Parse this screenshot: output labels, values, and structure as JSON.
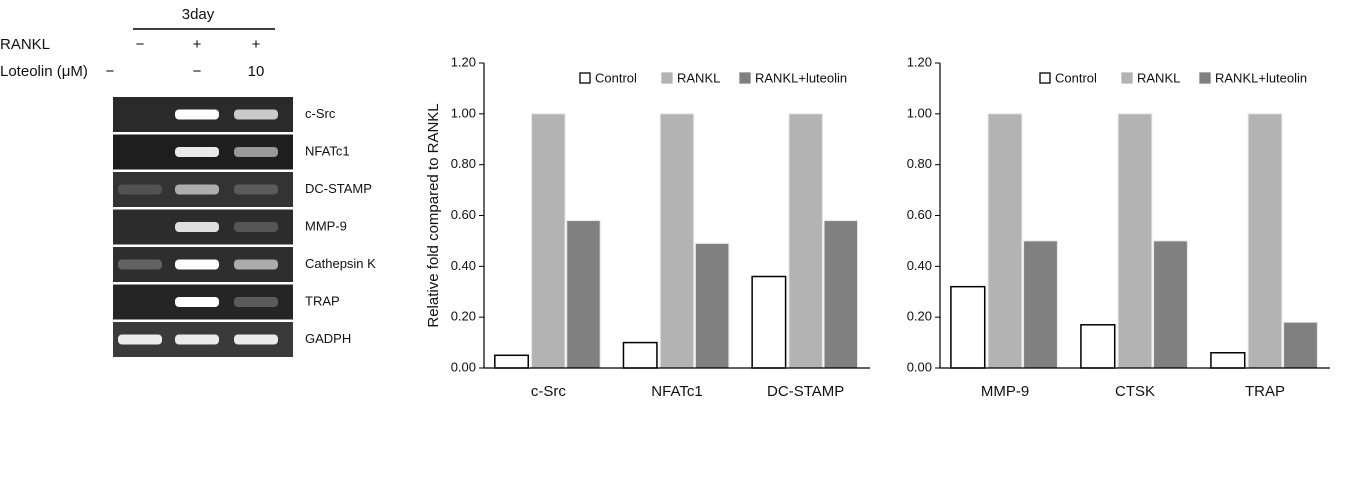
{
  "gel": {
    "header": "3day",
    "rows": [
      {
        "label": "RANKL",
        "lanes": [
          "−",
          "+",
          "+"
        ]
      },
      {
        "label": "Loteolin (μM)",
        "lanes": [
          "−",
          "−",
          "10"
        ]
      }
    ],
    "bands": [
      "c-Src",
      "NFATc1",
      "DC-STAMP",
      "MMP-9",
      "Cathepsin K",
      "TRAP",
      "GADPH"
    ]
  },
  "chart_data": [
    {
      "type": "bar",
      "y_label": "Relative fold compared to RANKL",
      "categories": [
        "c-Src",
        "NFATc1",
        "DC-STAMP"
      ],
      "series": [
        {
          "name": "Control",
          "color": "#ffffff",
          "values": [
            0.05,
            0.1,
            0.36
          ]
        },
        {
          "name": "RANKL",
          "color": "#b3b3b3",
          "values": [
            1.0,
            1.0,
            1.0
          ]
        },
        {
          "name": "RANKL+luteolin",
          "color": "#808080",
          "values": [
            0.58,
            0.49,
            0.58
          ]
        }
      ],
      "ylim": [
        0,
        1.2
      ],
      "yticks": [
        {
          "value": 0,
          "label": "0.00"
        },
        {
          "value": 0.2,
          "label": "0.20"
        },
        {
          "value": 0.4,
          "label": "0.40"
        },
        {
          "value": 0.6,
          "label": "0.60"
        },
        {
          "value": 0.8,
          "label": "0.80"
        },
        {
          "value": 1,
          "label": "1.00"
        },
        {
          "value": 1.2,
          "label": "1.20"
        }
      ],
      "legend": "top-right"
    },
    {
      "type": "bar",
      "categories": [
        "MMP-9",
        "CTSK",
        "TRAP"
      ],
      "series": [
        {
          "name": "Control",
          "color": "#ffffff",
          "values": [
            0.32,
            0.17,
            0.06
          ]
        },
        {
          "name": "RANKL",
          "color": "#b3b3b3",
          "values": [
            1.0,
            1.0,
            1.0
          ]
        },
        {
          "name": "RANKL+luteolin",
          "color": "#808080",
          "values": [
            0.5,
            0.5,
            0.18
          ]
        }
      ],
      "ylim": [
        0,
        1.2
      ],
      "yticks": [
        {
          "value": 0,
          "label": "0.00"
        },
        {
          "value": 0.2,
          "label": "0.20"
        },
        {
          "value": 0.4,
          "label": "0.40"
        },
        {
          "value": 0.6,
          "label": "0.60"
        },
        {
          "value": 0.8,
          "label": "0.80"
        },
        {
          "value": 1,
          "label": "1.00"
        },
        {
          "value": 1.2,
          "label": "1.20"
        }
      ],
      "legend": "top-right"
    }
  ]
}
